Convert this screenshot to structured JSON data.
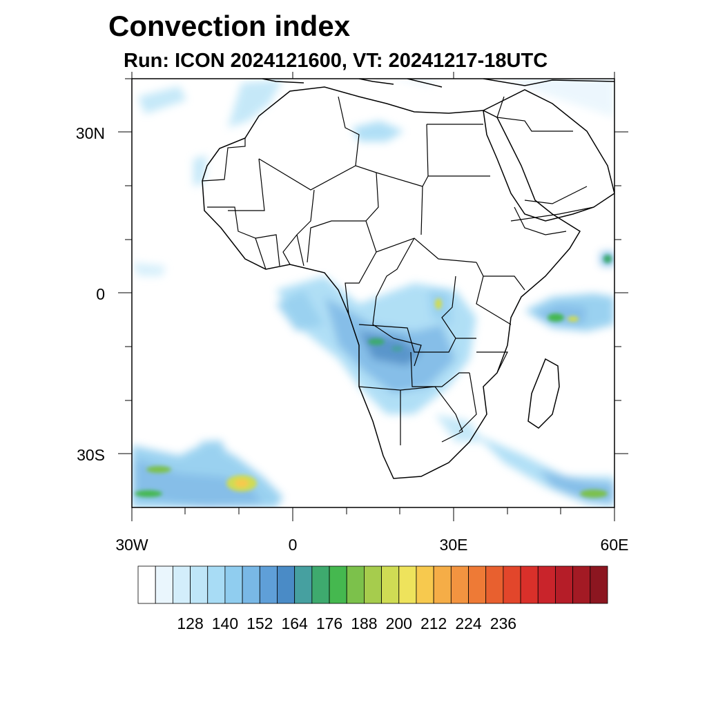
{
  "title": "Convection index",
  "subtitle": "Run: ICON 2024121600,  VT: 20241217-18UTC",
  "map": {
    "lon_range": [
      -30,
      60
    ],
    "lat_range": [
      -40,
      40
    ],
    "lon_ticks": [
      {
        "value": -30,
        "label": "30W"
      },
      {
        "value": 0,
        "label": "0"
      },
      {
        "value": 30,
        "label": "30E"
      },
      {
        "value": 60,
        "label": "60E"
      }
    ],
    "lat_ticks": [
      {
        "value": 30,
        "label": "30N"
      },
      {
        "value": 0,
        "label": "0"
      },
      {
        "value": -30,
        "label": "30S"
      }
    ]
  },
  "colorbar": {
    "labels": [
      "128",
      "140",
      "152",
      "164",
      "176",
      "188",
      "200",
      "212",
      "224",
      "236"
    ],
    "colors": [
      "#ffffff",
      "#eaf6fd",
      "#d3eefb",
      "#bfe6f8",
      "#a8dcf5",
      "#90cdef",
      "#79b8e6",
      "#5f9fd8",
      "#4a8bc6",
      "#46a0a0",
      "#3eaa6e",
      "#45b84f",
      "#7cc14b",
      "#a6cc4d",
      "#cfdc54",
      "#eee35c",
      "#f7c94e",
      "#f5ad47",
      "#f39440",
      "#ee7a36",
      "#e8602f",
      "#e2462b",
      "#d9302a",
      "#c9242b",
      "#b51d28",
      "#a31a24",
      "#8c1620"
    ]
  }
}
